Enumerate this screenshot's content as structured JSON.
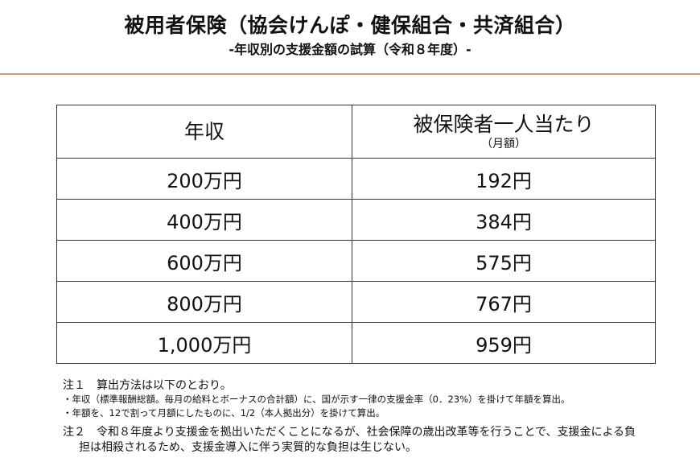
{
  "header": {
    "title": "被用者保険（協会けんぽ・健保組合・共済組合）",
    "subtitle": "-年収別の支援金額の試算（令和８年度）-"
  },
  "accent_color": "#d59a78",
  "table": {
    "headers": [
      {
        "main": "年収",
        "sub": ""
      },
      {
        "main": "被保険者一人当たり",
        "sub": "（月額）"
      }
    ],
    "rows": [
      [
        "200万円",
        "192円"
      ],
      [
        "400万円",
        "384円"
      ],
      [
        "600万円",
        "575円"
      ],
      [
        "800万円",
        "767円"
      ],
      [
        "1,000万円",
        "959円"
      ]
    ]
  },
  "chart_data": {
    "type": "table",
    "title": "被用者保険（協会けんぽ・健保組合・共済組合） -年収別の支援金額の試算（令和８年度）-",
    "columns": [
      "年収",
      "被保険者一人当たり（月額）"
    ],
    "categories": [
      "200万円",
      "400万円",
      "600万円",
      "800万円",
      "1,000万円"
    ],
    "values": [
      192,
      384,
      575,
      767,
      959
    ],
    "unit": "円"
  },
  "notes": {
    "note1_heading": "注１　算出方法は以下のとおり。",
    "bullets": [
      "・年収（標準報酬総額。毎月の給料とボーナスの合計額）に、国が示す一律の支援金率（0．23%）を掛けて年額を算出。",
      "・年額を、12で割って月額にしたものに、1/2（本人拠出分）を掛けて算出。"
    ],
    "note2_line1": "注２　令和８年度より支援金を拠出いただくことになるが、社会保障の歳出改革等を行うことで、支援金による負",
    "note2_line2": "担は相殺されるため、支援金導入に伴う実質的な負担は生じない。"
  }
}
